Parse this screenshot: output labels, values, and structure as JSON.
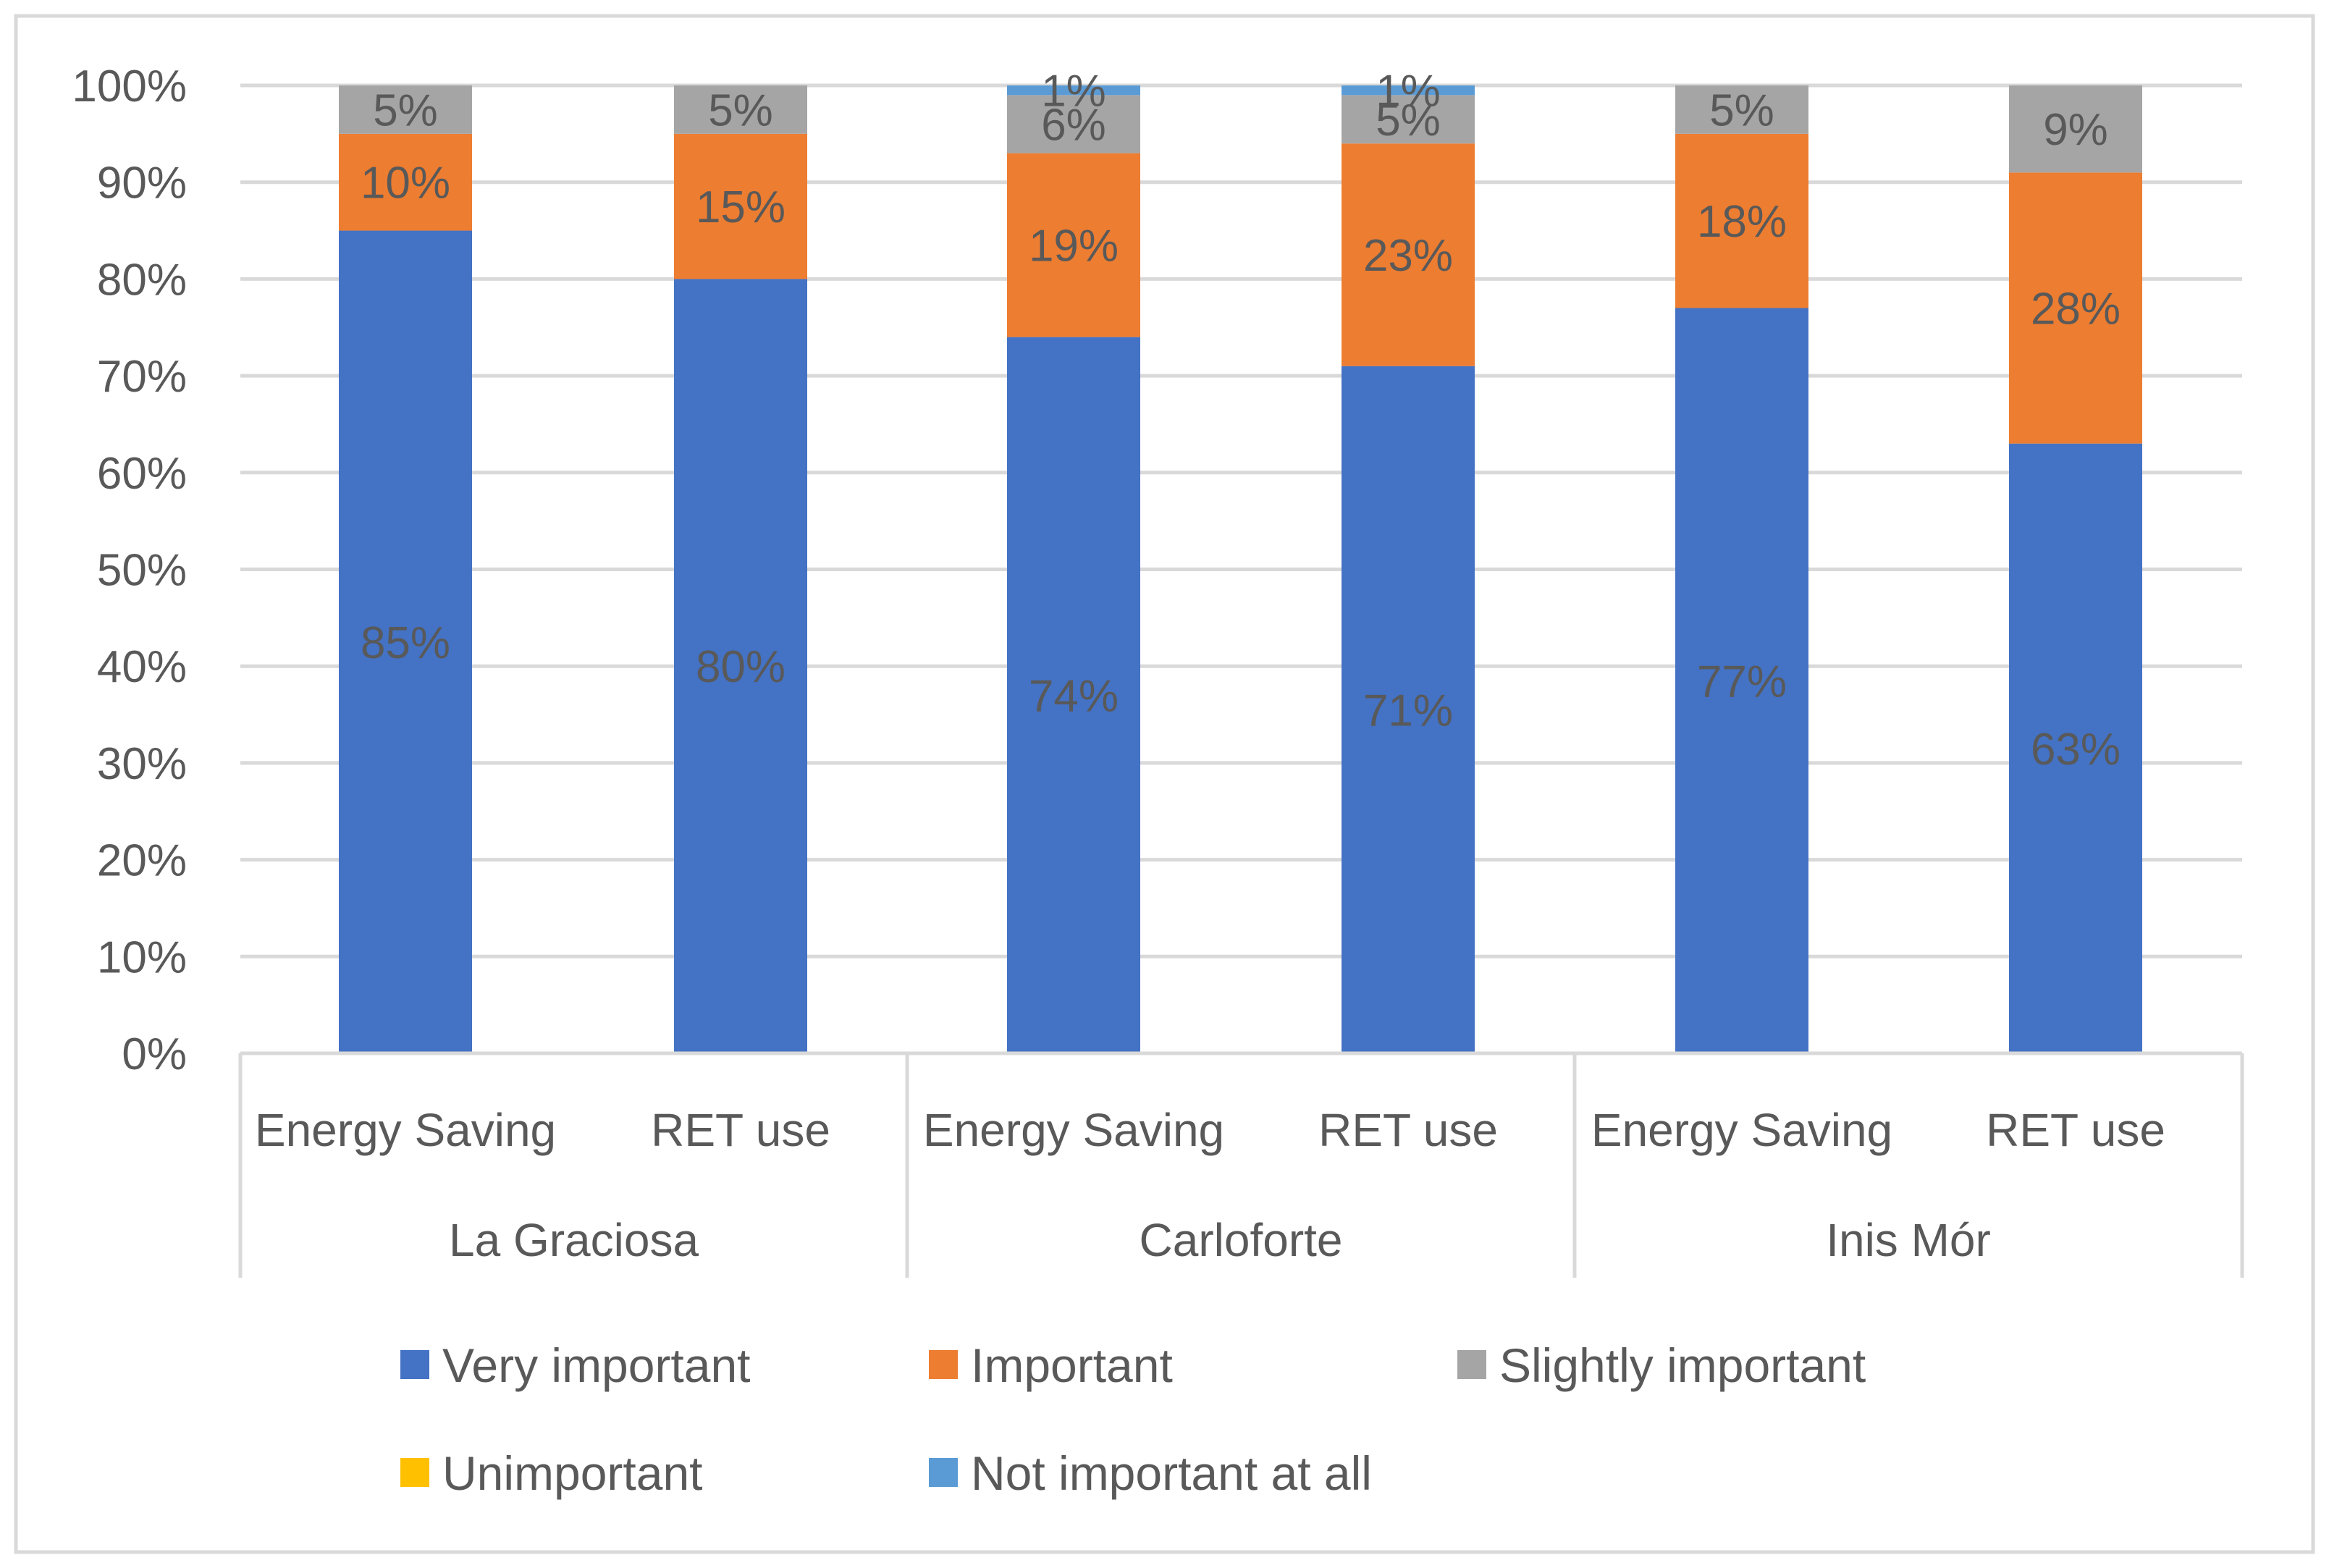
{
  "chart_data": {
    "type": "bar",
    "stacked": true,
    "title": "",
    "xlabel": "",
    "ylabel": "",
    "ylim": [
      0,
      100
    ],
    "yticks": [
      "0%",
      "10%",
      "20%",
      "30%",
      "40%",
      "50%",
      "60%",
      "70%",
      "80%",
      "90%",
      "100%"
    ],
    "groups": [
      {
        "label": "La Graciosa",
        "categories": [
          "Energy Saving",
          "RET use"
        ]
      },
      {
        "label": "Carloforte",
        "categories": [
          "Energy Saving",
          "RET use"
        ]
      },
      {
        "label": "Inis Mór",
        "categories": [
          "Energy Saving",
          "RET use"
        ]
      }
    ],
    "series": [
      {
        "name": "Very important",
        "color": "#4472C4",
        "values": [
          85,
          80,
          74,
          71,
          77,
          63
        ],
        "labels": [
          "85%",
          "80%",
          "74%",
          "71%",
          "77%",
          "63%"
        ]
      },
      {
        "name": "Important",
        "color": "#ED7D31",
        "values": [
          10,
          15,
          19,
          23,
          18,
          28
        ],
        "labels": [
          "10%",
          "15%",
          "19%",
          "23%",
          "18%",
          "28%"
        ]
      },
      {
        "name": "Slightly important",
        "color": "#A5A5A5",
        "values": [
          5,
          5,
          6,
          5,
          5,
          9
        ],
        "labels": [
          "5%",
          "5%",
          "6%",
          "5%",
          "5%",
          "9%"
        ]
      },
      {
        "name": "Unimportant",
        "color": "#FFC000",
        "values": [
          0,
          0,
          0,
          0,
          0,
          0
        ],
        "labels": [
          "",
          "",
          "",
          "",
          "",
          ""
        ]
      },
      {
        "name": "Not important at all",
        "color": "#5B9BD5",
        "values": [
          0,
          0,
          1,
          1,
          0,
          0
        ],
        "labels": [
          "",
          "",
          "1%",
          "1%",
          "",
          ""
        ]
      }
    ],
    "legend_position": "bottom"
  }
}
